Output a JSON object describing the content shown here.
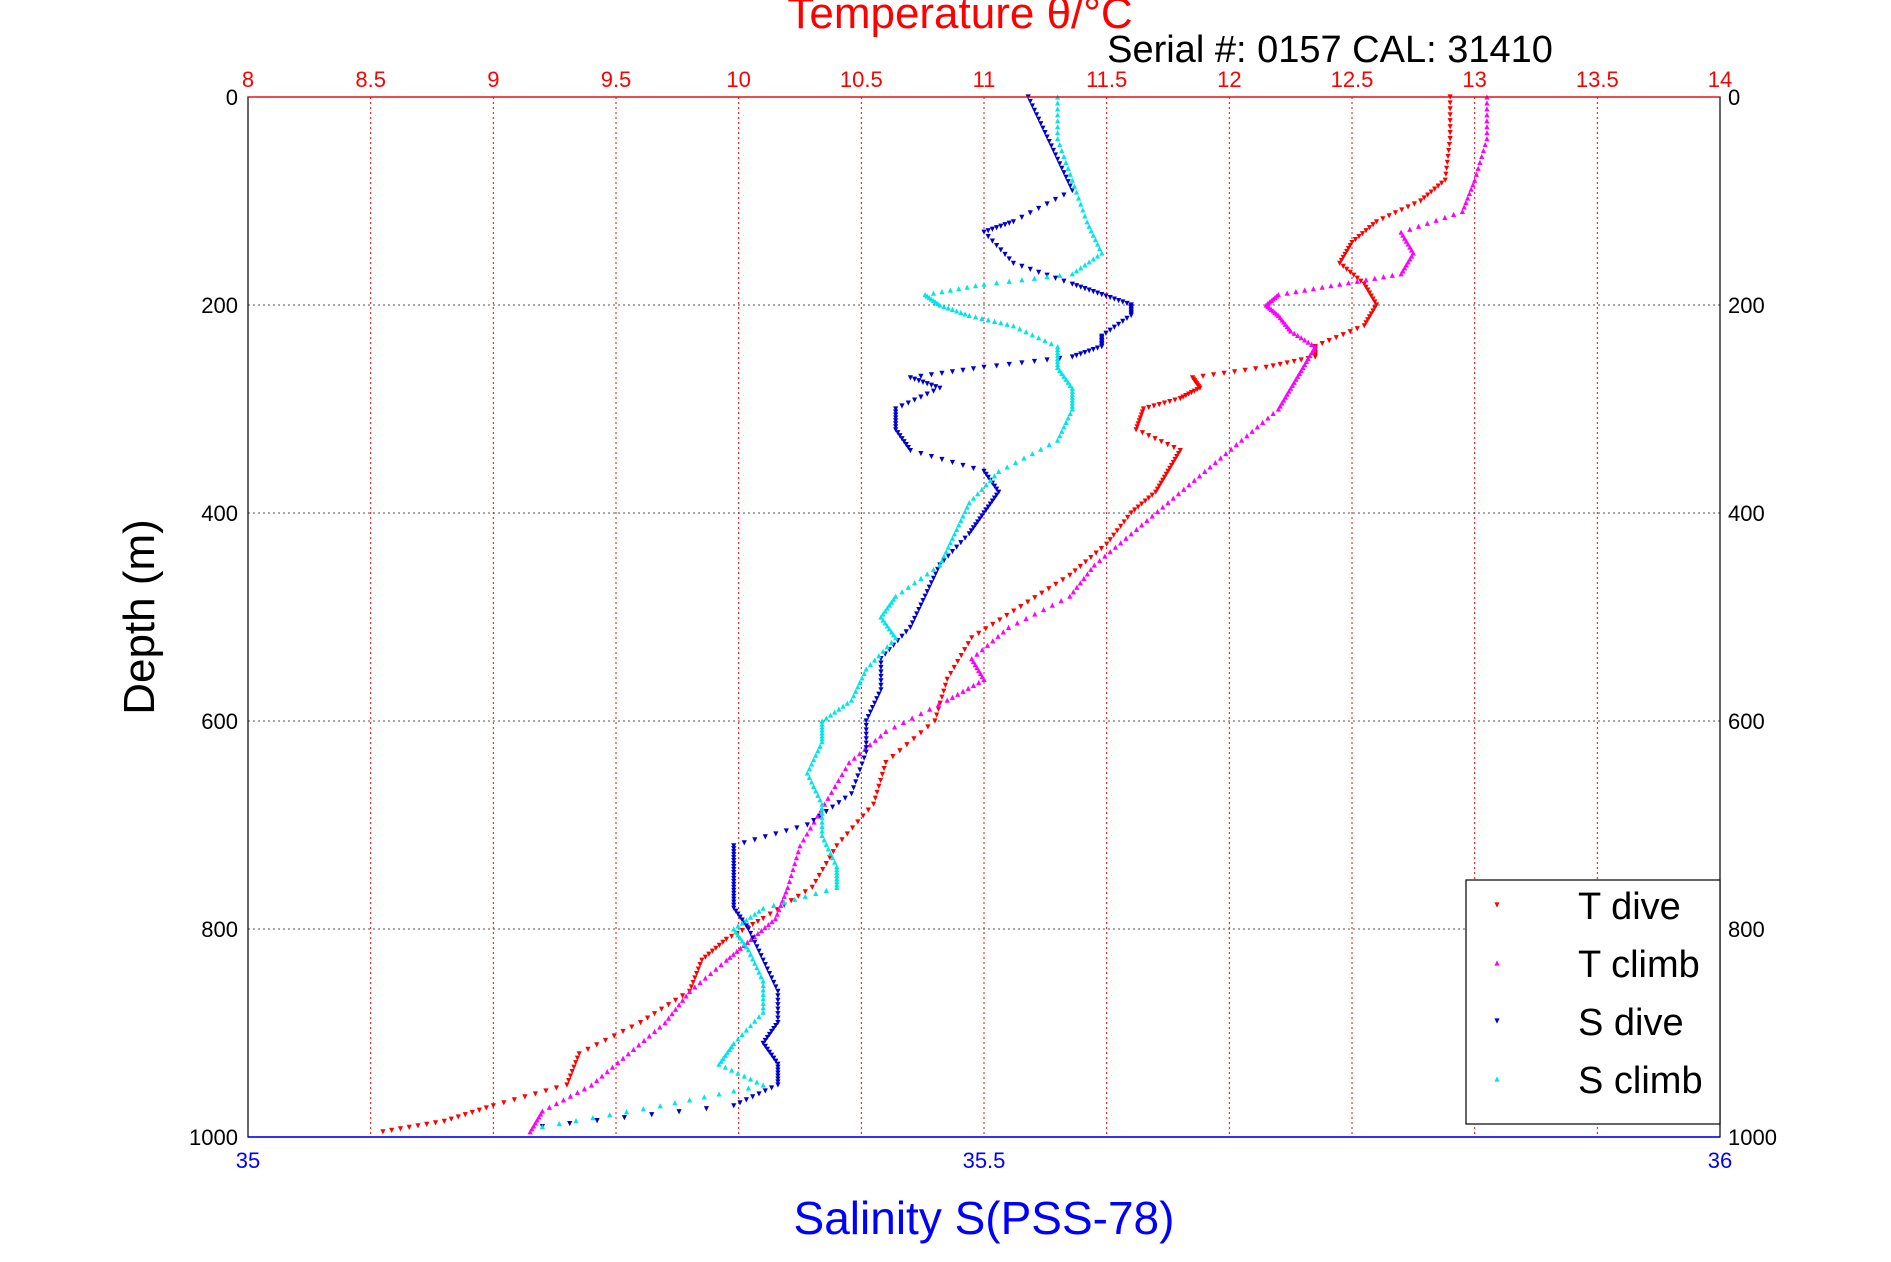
{
  "chart_data": {
    "type": "scatter",
    "title": "Temperature θ/°C",
    "subtitle": "Serial #: 0157  CAL: 31410",
    "ylabel": "Depth (m)",
    "xlabel": "Salinity S(PSS-78)",
    "top_axis": {
      "label": "Temperature θ/°C",
      "range": [
        8,
        14
      ],
      "ticks": [
        "8",
        "8.5",
        "9",
        "9.5",
        "10",
        "10.5",
        "11",
        "11.5",
        "12",
        "12.5",
        "13",
        "13.5",
        "14"
      ]
    },
    "bottom_axis": {
      "label": "Salinity S(PSS-78)",
      "range": [
        35,
        36
      ],
      "ticks": [
        "35",
        "35.5",
        "36"
      ]
    },
    "y_axis": {
      "range": [
        0,
        1000
      ],
      "reversed": true,
      "ticks": [
        "0",
        "200",
        "400",
        "600",
        "800",
        "1000"
      ]
    },
    "grid": "dotted",
    "legend_position": "bottom-right",
    "colors": {
      "temperature_axis": "#ff0000",
      "salinity_axis": "#0000ff",
      "t_dive": "#ff0000",
      "t_climb": "#ff00ff",
      "s_dive": "#0000cc",
      "s_climb": "#00e5e5"
    },
    "series": [
      {
        "name": "T dive",
        "axis": "temperature",
        "color": "#ff0000",
        "depth": [
          0,
          40,
          80,
          100,
          120,
          140,
          160,
          180,
          200,
          220,
          240,
          250,
          260,
          270,
          280,
          290,
          300,
          320,
          340,
          360,
          380,
          400,
          430,
          460,
          490,
          520,
          560,
          600,
          640,
          680,
          720,
          760,
          790,
          810,
          830,
          860,
          890,
          920,
          950,
          970,
          985,
          995
        ],
        "values": [
          12.9,
          12.9,
          12.88,
          12.78,
          12.6,
          12.5,
          12.45,
          12.55,
          12.6,
          12.55,
          12.35,
          12.35,
          12.15,
          11.85,
          11.88,
          11.8,
          11.65,
          11.62,
          11.8,
          11.75,
          11.7,
          11.6,
          11.5,
          11.35,
          11.15,
          10.95,
          10.85,
          10.8,
          10.6,
          10.55,
          10.4,
          10.3,
          10.1,
          9.95,
          9.85,
          9.8,
          9.6,
          9.35,
          9.3,
          9.0,
          8.8,
          8.55
        ]
      },
      {
        "name": "T climb",
        "axis": "temperature",
        "color": "#ff00ff",
        "depth": [
          0,
          40,
          80,
          110,
          130,
          150,
          170,
          180,
          190,
          200,
          210,
          225,
          240,
          260,
          280,
          300,
          330,
          360,
          390,
          420,
          450,
          480,
          510,
          540,
          560,
          580,
          610,
          640,
          680,
          720,
          760,
          790,
          810,
          830,
          860,
          890,
          920,
          950,
          975,
          995
        ],
        "values": [
          13.05,
          13.05,
          13.0,
          12.95,
          12.7,
          12.75,
          12.7,
          12.45,
          12.2,
          12.15,
          12.2,
          12.25,
          12.35,
          12.3,
          12.25,
          12.2,
          12.05,
          11.9,
          11.75,
          11.6,
          11.45,
          11.35,
          11.1,
          10.95,
          11.0,
          10.85,
          10.6,
          10.45,
          10.35,
          10.25,
          10.2,
          10.15,
          10.05,
          9.95,
          9.8,
          9.7,
          9.55,
          9.4,
          9.2,
          9.15
        ]
      },
      {
        "name": "S dive",
        "axis": "salinity",
        "color": "#0000cc",
        "depth": [
          0,
          30,
          60,
          90,
          120,
          130,
          160,
          180,
          190,
          200,
          210,
          230,
          240,
          250,
          260,
          270,
          280,
          300,
          320,
          340,
          360,
          380,
          400,
          420,
          450,
          480,
          510,
          540,
          570,
          600,
          630,
          670,
          700,
          720,
          740,
          760,
          780,
          800,
          830,
          860,
          890,
          910,
          930,
          950,
          970,
          990
        ],
        "values": [
          35.53,
          35.54,
          35.55,
          35.56,
          35.52,
          35.5,
          35.52,
          35.56,
          35.58,
          35.6,
          35.6,
          35.58,
          35.58,
          35.56,
          35.5,
          35.45,
          35.47,
          35.44,
          35.44,
          35.45,
          35.5,
          35.51,
          35.5,
          35.49,
          35.47,
          35.46,
          35.45,
          35.43,
          35.43,
          35.42,
          35.42,
          35.41,
          35.38,
          35.33,
          35.33,
          35.33,
          35.33,
          35.34,
          35.35,
          35.36,
          35.36,
          35.35,
          35.36,
          35.36,
          35.33,
          35.2
        ]
      },
      {
        "name": "S climb",
        "axis": "salinity",
        "color": "#00e5e5",
        "depth": [
          0,
          40,
          80,
          120,
          150,
          170,
          180,
          190,
          200,
          210,
          220,
          240,
          260,
          280,
          300,
          330,
          360,
          390,
          420,
          450,
          480,
          500,
          520,
          550,
          580,
          600,
          620,
          650,
          680,
          710,
          740,
          760,
          780,
          800,
          820,
          850,
          880,
          910,
          930,
          950,
          970,
          990
        ],
        "values": [
          35.55,
          35.55,
          35.56,
          35.57,
          35.58,
          35.56,
          35.5,
          35.46,
          35.47,
          35.49,
          35.52,
          35.55,
          35.55,
          35.56,
          35.56,
          35.55,
          35.51,
          35.49,
          35.48,
          35.47,
          35.44,
          35.43,
          35.44,
          35.42,
          35.41,
          35.39,
          35.39,
          35.38,
          35.39,
          35.39,
          35.4,
          35.4,
          35.35,
          35.33,
          35.34,
          35.35,
          35.35,
          35.33,
          35.32,
          35.35,
          35.28,
          35.2
        ]
      }
    ],
    "legend": [
      "T dive",
      "T climb",
      "S dive",
      "S climb"
    ]
  }
}
